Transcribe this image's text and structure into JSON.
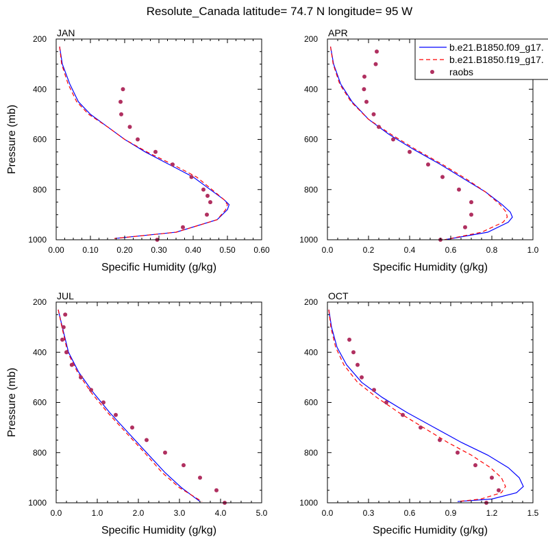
{
  "title": "Resolute_Canada  latitude= 74.7 N longitude= 95 W",
  "colors": {
    "model_f09": "#0000ff",
    "model_f19": "#ff0000",
    "raobs": "#b03060"
  },
  "legend": {
    "placement": "top-right",
    "entries": [
      {
        "label": "b.e21.B1850.f09_g17.",
        "style": "solid-line",
        "color": "#0000ff"
      },
      {
        "label": "b.e21.B1850.f19_g17.",
        "style": "dashed-line",
        "color": "#ff0000"
      },
      {
        "label": "raobs",
        "style": "marker",
        "color": "#b03060"
      }
    ]
  },
  "chart_data": [
    {
      "type": "line",
      "panel_label": "JAN",
      "xlabel": "Specific Humidity (g/kg)",
      "ylabel": "Pressure (mb)",
      "xlim": [
        0,
        0.6
      ],
      "ylim": [
        1000,
        200
      ],
      "y_reversed": true,
      "xticks": [
        "0.00",
        "0.10",
        "0.20",
        "0.30",
        "0.40",
        "0.50",
        "0.60"
      ],
      "xtick_values": [
        0,
        0.1,
        0.2,
        0.3,
        0.4,
        0.5,
        0.6
      ],
      "yticks": [
        "200",
        "400",
        "600",
        "800",
        "1000"
      ],
      "ytick_values": [
        200,
        400,
        600,
        800,
        1000
      ],
      "series": [
        {
          "key": "f09",
          "x": [
            0.01,
            0.018,
            0.04,
            0.065,
            0.1,
            0.15,
            0.2,
            0.26,
            0.33,
            0.4,
            0.45,
            0.49,
            0.505,
            0.5,
            0.47,
            0.35,
            0.17
          ],
          "y": [
            230,
            300,
            380,
            450,
            500,
            550,
            600,
            650,
            700,
            750,
            800,
            840,
            860,
            880,
            920,
            970,
            995
          ]
        },
        {
          "key": "f19",
          "x": [
            0.01,
            0.016,
            0.035,
            0.06,
            0.095,
            0.15,
            0.2,
            0.265,
            0.34,
            0.41,
            0.455,
            0.49,
            0.5,
            0.495,
            0.47,
            0.35,
            0.17
          ],
          "y": [
            230,
            300,
            380,
            450,
            500,
            550,
            600,
            650,
            700,
            750,
            800,
            840,
            860,
            880,
            920,
            970,
            995
          ]
        },
        {
          "key": "raobs",
          "x": [
            0.195,
            0.188,
            0.19,
            0.215,
            0.238,
            0.29,
            0.34,
            0.395,
            0.43,
            0.442,
            0.45,
            0.44,
            0.37,
            0.295
          ],
          "y": [
            400,
            450,
            500,
            550,
            600,
            650,
            700,
            750,
            800,
            825,
            850,
            900,
            950,
            1000
          ]
        }
      ]
    },
    {
      "type": "line",
      "panel_label": "APR",
      "xlabel": "Specific Humidity (g/kg)",
      "ylabel": "",
      "xlim": [
        0,
        1.0
      ],
      "ylim": [
        1000,
        200
      ],
      "y_reversed": true,
      "xticks": [
        "0.0",
        "0.2",
        "0.4",
        "0.6",
        "0.8",
        "1.0"
      ],
      "xtick_values": [
        0,
        0.2,
        0.4,
        0.6,
        0.8,
        1.0
      ],
      "yticks": [
        "200",
        "400",
        "600",
        "800",
        "1000"
      ],
      "ytick_values": [
        200,
        400,
        600,
        800,
        1000
      ],
      "series": [
        {
          "key": "f09",
          "x": [
            0.015,
            0.03,
            0.065,
            0.12,
            0.2,
            0.3,
            0.42,
            0.55,
            0.67,
            0.77,
            0.85,
            0.89,
            0.9,
            0.88,
            0.78,
            0.57
          ],
          "y": [
            230,
            300,
            380,
            450,
            520,
            580,
            640,
            700,
            760,
            810,
            860,
            890,
            910,
            930,
            970,
            1000
          ]
        },
        {
          "key": "f19",
          "x": [
            0.015,
            0.028,
            0.06,
            0.115,
            0.2,
            0.31,
            0.43,
            0.56,
            0.68,
            0.77,
            0.84,
            0.87,
            0.875,
            0.855,
            0.75,
            0.57
          ],
          "y": [
            230,
            300,
            380,
            450,
            520,
            580,
            640,
            700,
            760,
            810,
            860,
            890,
            910,
            930,
            970,
            1000
          ]
        },
        {
          "key": "raobs",
          "x": [
            0.24,
            0.235,
            0.18,
            0.178,
            0.19,
            0.225,
            0.25,
            0.32,
            0.4,
            0.49,
            0.56,
            0.64,
            0.7,
            0.7,
            0.67,
            0.55
          ],
          "y": [
            250,
            300,
            350,
            400,
            450,
            500,
            550,
            600,
            650,
            700,
            750,
            800,
            850,
            900,
            950,
            1000
          ]
        }
      ]
    },
    {
      "type": "line",
      "panel_label": "JUL",
      "xlabel": "Specific Humidity (g/kg)",
      "ylabel": "Pressure (mb)",
      "xlim": [
        0,
        5.0
      ],
      "ylim": [
        1000,
        200
      ],
      "y_reversed": true,
      "xticks": [
        "0.0",
        "1.0",
        "2.0",
        "3.0",
        "4.0",
        "5.0"
      ],
      "xtick_values": [
        0,
        1,
        2,
        3,
        4,
        5
      ],
      "yticks": [
        "200",
        "400",
        "600",
        "800",
        "1000"
      ],
      "ytick_values": [
        200,
        400,
        600,
        800,
        1000
      ],
      "series": [
        {
          "key": "f09",
          "x": [
            0.05,
            0.15,
            0.3,
            0.55,
            0.9,
            1.3,
            1.75,
            2.2,
            2.65,
            3.05,
            3.5
          ],
          "y": [
            230,
            300,
            400,
            480,
            560,
            640,
            720,
            800,
            880,
            940,
            995
          ]
        },
        {
          "key": "f19",
          "x": [
            0.05,
            0.14,
            0.28,
            0.52,
            0.85,
            1.25,
            1.7,
            2.15,
            2.58,
            3.0,
            3.55
          ],
          "y": [
            230,
            300,
            400,
            480,
            560,
            640,
            720,
            800,
            880,
            940,
            995
          ]
        },
        {
          "key": "raobs",
          "x": [
            0.22,
            0.18,
            0.15,
            0.25,
            0.38,
            0.6,
            0.85,
            1.15,
            1.45,
            1.85,
            2.2,
            2.65,
            3.1,
            3.5,
            3.9,
            4.1
          ],
          "y": [
            250,
            300,
            350,
            400,
            450,
            500,
            550,
            600,
            650,
            700,
            750,
            800,
            850,
            900,
            950,
            1000
          ]
        }
      ]
    },
    {
      "type": "line",
      "panel_label": "OCT",
      "xlabel": "Specific Humidity (g/kg)",
      "ylabel": "",
      "xlim": [
        0,
        1.5
      ],
      "ylim": [
        1000,
        200
      ],
      "y_reversed": true,
      "xticks": [
        "0.0",
        "0.3",
        "0.6",
        "0.9",
        "1.2",
        "1.5"
      ],
      "xtick_values": [
        0,
        0.3,
        0.6,
        0.9,
        1.2,
        1.5
      ],
      "yticks": [
        "200",
        "400",
        "600",
        "800",
        "1000"
      ],
      "ytick_values": [
        200,
        400,
        600,
        800,
        1000
      ],
      "series": [
        {
          "key": "f09",
          "x": [
            0.01,
            0.03,
            0.07,
            0.14,
            0.25,
            0.4,
            0.58,
            0.78,
            0.98,
            1.17,
            1.32,
            1.4,
            1.43,
            1.38,
            1.2,
            0.95
          ],
          "y": [
            230,
            300,
            380,
            450,
            520,
            580,
            640,
            700,
            760,
            810,
            860,
            900,
            935,
            960,
            985,
            995
          ]
        },
        {
          "key": "f19",
          "x": [
            0.01,
            0.025,
            0.06,
            0.12,
            0.22,
            0.36,
            0.52,
            0.7,
            0.88,
            1.05,
            1.19,
            1.27,
            1.3,
            1.27,
            1.12,
            0.95
          ],
          "y": [
            230,
            300,
            380,
            450,
            520,
            580,
            640,
            700,
            760,
            810,
            860,
            900,
            935,
            960,
            985,
            995
          ]
        },
        {
          "key": "raobs",
          "x": [
            0.16,
            0.19,
            0.22,
            0.25,
            0.34,
            0.43,
            0.55,
            0.68,
            0.82,
            0.95,
            1.08,
            1.2,
            1.25,
            1.16
          ],
          "y": [
            350,
            400,
            450,
            500,
            550,
            600,
            650,
            700,
            750,
            800,
            850,
            900,
            950,
            1000
          ]
        }
      ]
    }
  ]
}
